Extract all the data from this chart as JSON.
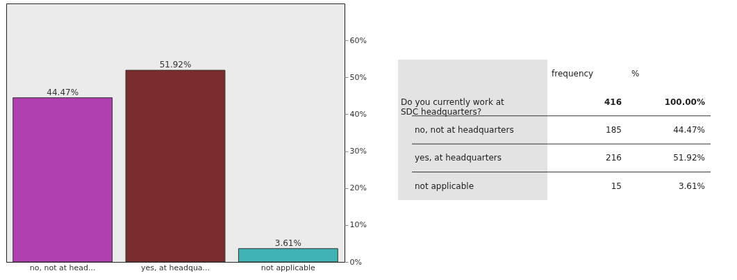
{
  "chart_data": [
    {
      "type": "bar",
      "categories": [
        "no, not at head...",
        "yes, at headqua...",
        "not applicable"
      ],
      "values": [
        44.47,
        51.92,
        3.61
      ],
      "colors": [
        "#b040b0",
        "#7a2c2c",
        "#40b4b4"
      ],
      "value_labels": [
        "44.47%",
        "51.92%",
        "3.61%"
      ],
      "ylim": [
        0,
        70
      ],
      "yticks": [
        {
          "value": 0,
          "label": "0%"
        },
        {
          "value": 10,
          "label": "10%"
        },
        {
          "value": 20,
          "label": "20%"
        },
        {
          "value": 30,
          "label": "30%"
        },
        {
          "value": 40,
          "label": "40%"
        },
        {
          "value": 50,
          "label": "50%"
        },
        {
          "value": 60,
          "label": "60%"
        }
      ],
      "grid": false,
      "legend": false
    },
    {
      "type": "other",
      "annotations": [
        "frequency",
        "%",
        "Do you currently work at SDC headquarters?",
        "416",
        "100.00%",
        "no, not at headquarters",
        "185",
        "44.47%",
        "yes, at headquarters",
        "216",
        "51.92%",
        "not applicable",
        "15",
        "3.61%"
      ]
    }
  ]
}
